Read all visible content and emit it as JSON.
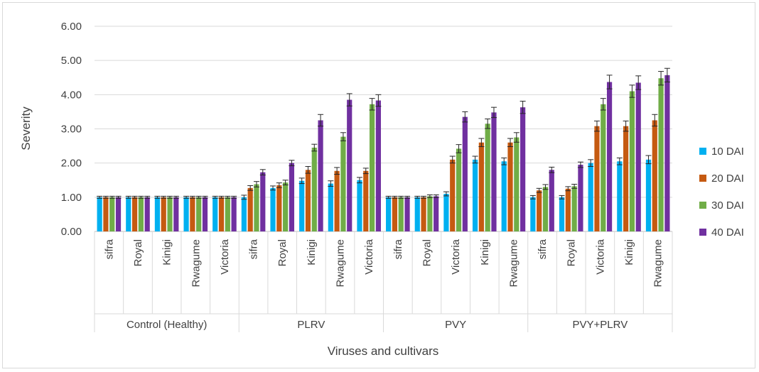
{
  "chart_data": {
    "type": "bar",
    "ylabel": "Severity",
    "xlabel": "Viruses and cultivars",
    "ylim": [
      0,
      6
    ],
    "yticks": [
      "0.00",
      "1.00",
      "2.00",
      "3.00",
      "4.00",
      "5.00",
      "6.00"
    ],
    "grid": true,
    "legend_position": "right",
    "groups": [
      {
        "name": "Control (Healthy)",
        "cultivars": [
          "sifra",
          "Royal",
          "Kinigi",
          "Rwagume",
          "Victoria"
        ]
      },
      {
        "name": "PLRV",
        "cultivars": [
          "sifra",
          "Royal",
          "Kinigi",
          "Rwagume",
          "Victoria"
        ]
      },
      {
        "name": "PVY",
        "cultivars": [
          "sifra",
          "Royal",
          "Victoria",
          "Kinigi",
          "Rwagume"
        ]
      },
      {
        "name": "PVY+PLRV",
        "cultivars": [
          "sifra",
          "Royal",
          "Victoria",
          "Kinigi",
          "Rwagume"
        ]
      }
    ],
    "series": [
      {
        "name": "10 DAI",
        "color": "#00b0f0",
        "values": [
          1.0,
          1.0,
          1.0,
          1.0,
          1.0,
          1.0,
          1.27,
          1.48,
          1.4,
          1.5,
          1.0,
          1.0,
          1.1,
          2.1,
          2.05,
          1.0,
          1.0,
          2.0,
          2.05,
          2.1
        ],
        "errors": [
          0.03,
          0.03,
          0.03,
          0.03,
          0.03,
          0.06,
          0.06,
          0.08,
          0.08,
          0.08,
          0.03,
          0.03,
          0.06,
          0.1,
          0.1,
          0.05,
          0.05,
          0.1,
          0.1,
          0.12
        ]
      },
      {
        "name": "20 DAI",
        "color": "#c55a11",
        "values": [
          1.0,
          1.0,
          1.0,
          1.0,
          1.0,
          1.27,
          1.35,
          1.8,
          1.77,
          1.77,
          1.0,
          1.0,
          2.1,
          2.6,
          2.6,
          1.2,
          1.25,
          3.08,
          3.08,
          3.25
        ],
        "errors": [
          0.03,
          0.03,
          0.03,
          0.03,
          0.03,
          0.07,
          0.07,
          0.1,
          0.1,
          0.08,
          0.03,
          0.03,
          0.1,
          0.12,
          0.12,
          0.06,
          0.06,
          0.15,
          0.15,
          0.17
        ]
      },
      {
        "name": "30 DAI",
        "color": "#70ad47",
        "values": [
          1.0,
          1.0,
          1.0,
          1.0,
          1.0,
          1.38,
          1.43,
          2.45,
          2.77,
          3.72,
          1.0,
          1.03,
          2.42,
          3.15,
          2.75,
          1.3,
          1.32,
          3.72,
          4.1,
          4.48
        ],
        "errors": [
          0.03,
          0.03,
          0.03,
          0.03,
          0.03,
          0.08,
          0.07,
          0.1,
          0.12,
          0.17,
          0.03,
          0.04,
          0.12,
          0.14,
          0.14,
          0.07,
          0.06,
          0.17,
          0.18,
          0.2
        ]
      },
      {
        "name": "40 DAI",
        "color": "#7030a0",
        "values": [
          1.0,
          1.0,
          1.0,
          1.0,
          1.0,
          1.73,
          2.0,
          3.25,
          3.85,
          3.83,
          1.0,
          1.03,
          3.35,
          3.48,
          3.63,
          1.8,
          1.95,
          4.37,
          4.35,
          4.57
        ],
        "errors": [
          0.03,
          0.03,
          0.03,
          0.03,
          0.03,
          0.08,
          0.08,
          0.17,
          0.18,
          0.17,
          0.03,
          0.04,
          0.15,
          0.15,
          0.18,
          0.08,
          0.08,
          0.2,
          0.2,
          0.2
        ]
      }
    ]
  }
}
